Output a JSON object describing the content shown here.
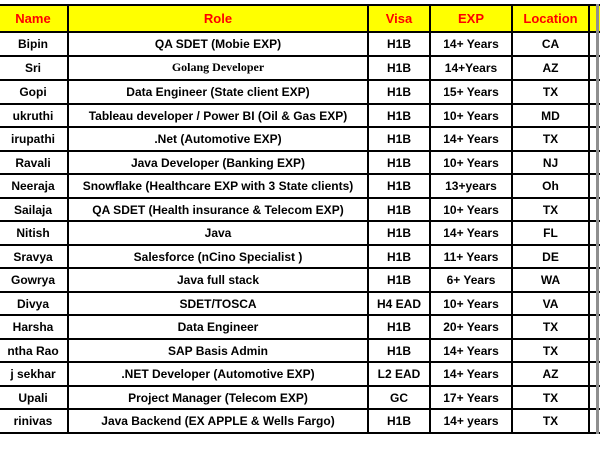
{
  "colors": {
    "header_bg": "#FFFF00",
    "header_text": "#FF0000",
    "border": "#000000",
    "body_text": "#000000",
    "right_edge_strip": "#8F8F8F"
  },
  "table": {
    "headers": [
      "Name",
      "Role",
      "Visa",
      "EXP",
      "Location"
    ],
    "rows": [
      {
        "name": "Bipin",
        "role": "QA SDET (Mobie EXP)",
        "visa": "H1B",
        "exp": "14+ Years",
        "location": "CA"
      },
      {
        "name": "Sri",
        "role": "Golang Developer",
        "visa": "H1B",
        "exp": "14+Years",
        "location": "AZ",
        "role_font": "serif"
      },
      {
        "name": "Gopi",
        "role": "Data Engineer (State client EXP)",
        "visa": "H1B",
        "exp": "15+ Years",
        "location": "TX"
      },
      {
        "name": "ukruthi",
        "role": "Tableau developer / Power BI (Oil & Gas EXP)",
        "visa": "H1B",
        "exp": "10+ Years",
        "location": "MD"
      },
      {
        "name": "irupathi",
        "role": ".Net  (Automotive EXP)",
        "visa": "H1B",
        "exp": "14+ Years",
        "location": "TX"
      },
      {
        "name": "Ravali",
        "role": "Java Developer (Banking EXP)",
        "visa": "H1B",
        "exp": "10+ Years",
        "location": "NJ"
      },
      {
        "name": "Neeraja",
        "role": "Snowflake (Healthcare EXP with 3 State clients)",
        "visa": "H1B",
        "exp": "13+years",
        "location": "Oh"
      },
      {
        "name": "Sailaja",
        "role": "QA SDET (Health insurance & Telecom EXP)",
        "visa": "H1B",
        "exp": "10+ Years",
        "location": "TX"
      },
      {
        "name": "Nitish",
        "role": "Java",
        "visa": "H1B",
        "exp": "14+ Years",
        "location": "FL"
      },
      {
        "name": "Sravya",
        "role": "Salesforce (nCino Specialist )",
        "visa": "H1B",
        "exp": "11+ Years",
        "location": "DE"
      },
      {
        "name": "Gowrya",
        "role": "Java full stack",
        "visa": "H1B",
        "exp": "6+ Years",
        "location": "WA"
      },
      {
        "name": "Divya",
        "role": "SDET/TOSCA",
        "visa": "H4 EAD",
        "exp": "10+ Years",
        "location": "VA"
      },
      {
        "name": "Harsha",
        "role": "Data Engineer",
        "visa": "H1B",
        "exp": "20+ Years",
        "location": "TX"
      },
      {
        "name": "ntha Rao",
        "role": "SAP Basis Admin",
        "visa": "H1B",
        "exp": "14+ Years",
        "location": "TX"
      },
      {
        "name": "j sekhar",
        "role": ".NET Developer (Automotive EXP)",
        "visa": "L2 EAD",
        "exp": "14+ Years",
        "location": "AZ"
      },
      {
        "name": "Upali",
        "role": "Project Manager (Telecom EXP)",
        "visa": "GC",
        "exp": "17+ Years",
        "location": "TX"
      },
      {
        "name": "rinivas",
        "role": "Java Backend (EX APPLE & Wells Fargo)",
        "visa": "H1B",
        "exp": "14+ years",
        "location": "TX"
      }
    ]
  }
}
